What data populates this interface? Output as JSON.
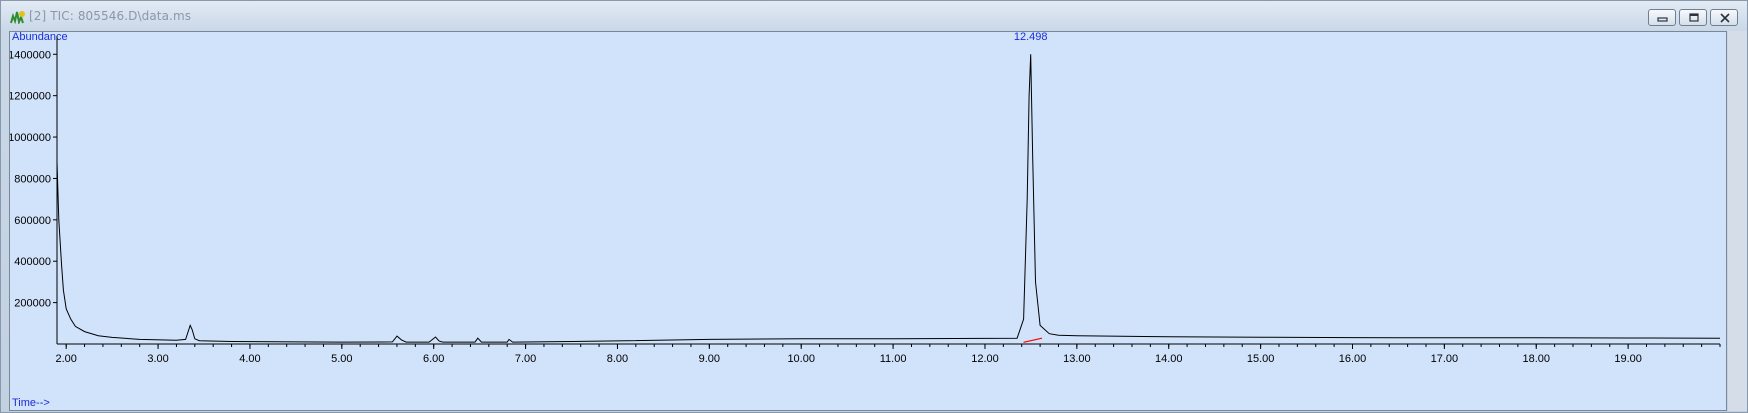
{
  "window": {
    "title": "[2] TIC: 805546.D\\data.ms",
    "icon": "chromatogram-app-icon",
    "controls": [
      "minimize-icon",
      "maximize-icon",
      "close-icon"
    ]
  },
  "colors": {
    "plot_bg": "#d1e2fb",
    "trace": "#000000",
    "axis_title": "#1b2dd6",
    "baseline_marker": "#ff0000"
  },
  "chart_data": {
    "type": "line",
    "ylabel": "Abundance",
    "xlabel": "Time-->",
    "xlim": [
      1.9,
      20.0
    ],
    "ylim": [
      0,
      1440000
    ],
    "x_ticks": [
      "2.00",
      "3.00",
      "4.00",
      "5.00",
      "6.00",
      "7.00",
      "8.00",
      "9.00",
      "10.00",
      "11.00",
      "12.00",
      "13.00",
      "14.00",
      "15.00",
      "16.00",
      "17.00",
      "18.00",
      "19.00"
    ],
    "y_ticks": [
      "200000",
      "400000",
      "600000",
      "800000",
      "1000000",
      "1200000",
      "1400000"
    ],
    "annotations": [
      {
        "text": "12.498",
        "x": 12.498,
        "y": 1400000
      }
    ],
    "baseline_segment": {
      "x": [
        12.42,
        12.62
      ],
      "y": [
        8000,
        28000
      ]
    },
    "series": [
      {
        "x": [
          1.9,
          1.92,
          1.95,
          1.97,
          2.0,
          2.05,
          2.1,
          2.2,
          2.35,
          2.5,
          2.8,
          3.2,
          3.3,
          3.35,
          3.37,
          3.4,
          3.45,
          3.8,
          4.5,
          5.0,
          5.55,
          5.6,
          5.65,
          5.7,
          5.95,
          6.02,
          6.06,
          6.1,
          6.45,
          6.48,
          6.52,
          6.8,
          6.82,
          6.86,
          7.5,
          8.0,
          9.0,
          10.0,
          11.0,
          12.0,
          12.35,
          12.42,
          12.46,
          12.48,
          12.498,
          12.52,
          12.55,
          12.6,
          12.7,
          12.8,
          13.0,
          14.0,
          15.0,
          16.0,
          17.0,
          18.0,
          19.0,
          20.0
        ],
        "y": [
          880000,
          600000,
          380000,
          260000,
          170000,
          120000,
          85000,
          60000,
          40000,
          32000,
          22000,
          18000,
          22000,
          90000,
          70000,
          25000,
          16000,
          12000,
          10000,
          9000,
          10000,
          38000,
          20000,
          9000,
          9000,
          34000,
          14000,
          9000,
          9000,
          28000,
          9000,
          9000,
          22000,
          9000,
          12000,
          15000,
          22000,
          25000,
          25000,
          27000,
          28000,
          120000,
          700000,
          1200000,
          1400000,
          900000,
          300000,
          90000,
          50000,
          42000,
          40000,
          35000,
          33000,
          31000,
          30000,
          30000,
          29000,
          28000
        ]
      }
    ]
  }
}
